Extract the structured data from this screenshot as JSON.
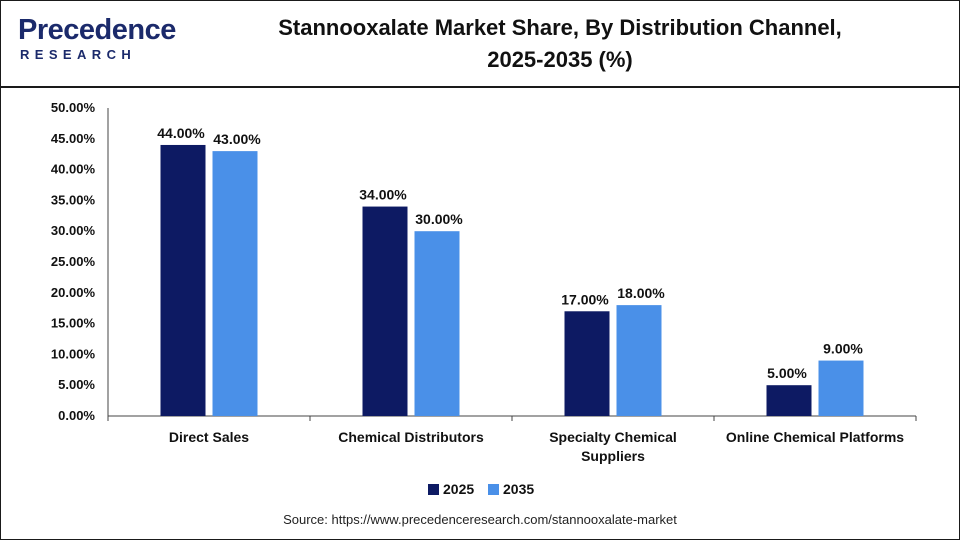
{
  "brand": {
    "name_line1": "Precedence",
    "name_line2": "RESEARCH"
  },
  "source_text": "Source: https://www.precedenceresearch.com/stannooxalate-market",
  "chart_data": {
    "type": "bar",
    "title_line1": "Stannooxalate Market Share, By Distribution Channel,",
    "title_line2": "2025-2035 (%)",
    "categories": [
      [
        "Direct Sales"
      ],
      [
        "Chemical Distributors"
      ],
      [
        "Specialty Chemical",
        "Suppliers"
      ],
      [
        "Online Chemical Platforms"
      ]
    ],
    "series": [
      {
        "name": "2025",
        "color": "#0d1a63",
        "values": [
          44,
          34,
          17,
          5
        ],
        "labels": [
          "44.00%",
          "34.00%",
          "17.00%",
          "5.00%"
        ]
      },
      {
        "name": "2035",
        "color": "#4a90e8",
        "values": [
          43,
          30,
          18,
          9
        ],
        "labels": [
          "43.00%",
          "30.00%",
          "18.00%",
          "9.00%"
        ]
      }
    ],
    "yticks": [
      "0.00%",
      "5.00%",
      "10.00%",
      "15.00%",
      "20.00%",
      "25.00%",
      "30.00%",
      "35.00%",
      "40.00%",
      "45.00%",
      "50.00%"
    ],
    "ylim": [
      0,
      50
    ],
    "ystep": 5,
    "legend": "bottom-center",
    "grid": false
  }
}
